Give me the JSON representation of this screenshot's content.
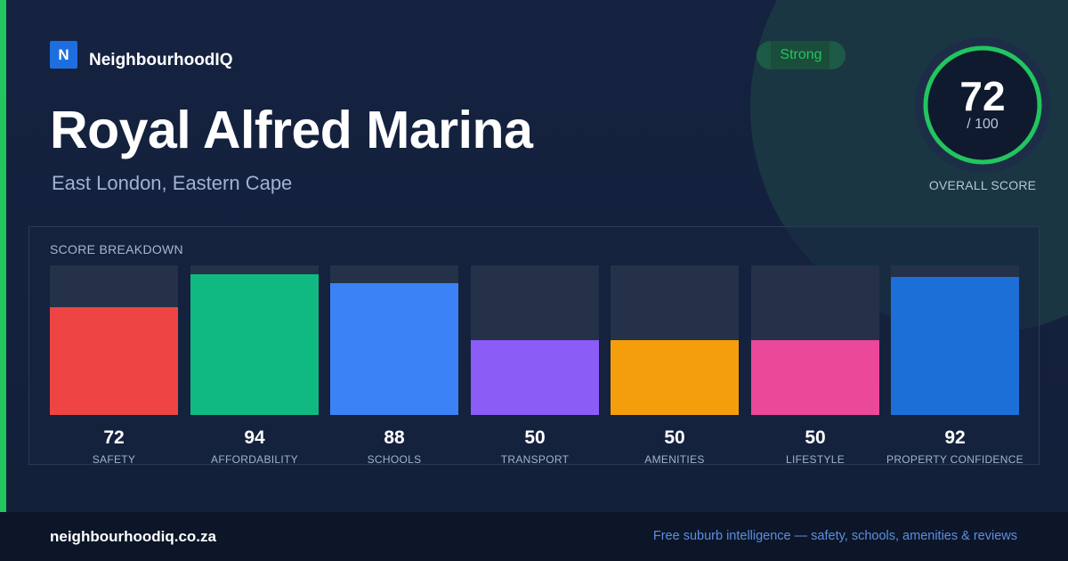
{
  "brand": {
    "logo_letter": "N",
    "name": "NeighbourhoodIQ",
    "color": "#1d6fe0"
  },
  "header": {
    "title": "Royal Alfred Marina",
    "subtitle": "East London, Eastern Cape",
    "badge": "Strong"
  },
  "overall": {
    "score": "72",
    "max_label": "/ 100",
    "label": "OVERALL SCORE",
    "fraction": 0.72,
    "color": "#22c55e"
  },
  "breakdown": {
    "title": "SCORE BREAKDOWN"
  },
  "chart_data": {
    "type": "bar",
    "title": "SCORE BREAKDOWN",
    "categories": [
      "SAFETY",
      "AFFORDABILITY",
      "SCHOOLS",
      "TRANSPORT",
      "AMENITIES",
      "LIFESTYLE",
      "PROPERTY CONFIDENCE"
    ],
    "values": [
      72,
      94,
      88,
      50,
      50,
      50,
      92
    ],
    "ylim": [
      0,
      100
    ],
    "colors": [
      "#ef4444",
      "#10b981",
      "#3b82f6",
      "#8b5cf6",
      "#f59e0b",
      "#ec4899",
      "#1d6fd8"
    ],
    "grid": false
  },
  "footer": {
    "url": "neighbourhoodiq.co.za",
    "tagline": "Free suburb intelligence — safety, schools, amenities & reviews"
  }
}
